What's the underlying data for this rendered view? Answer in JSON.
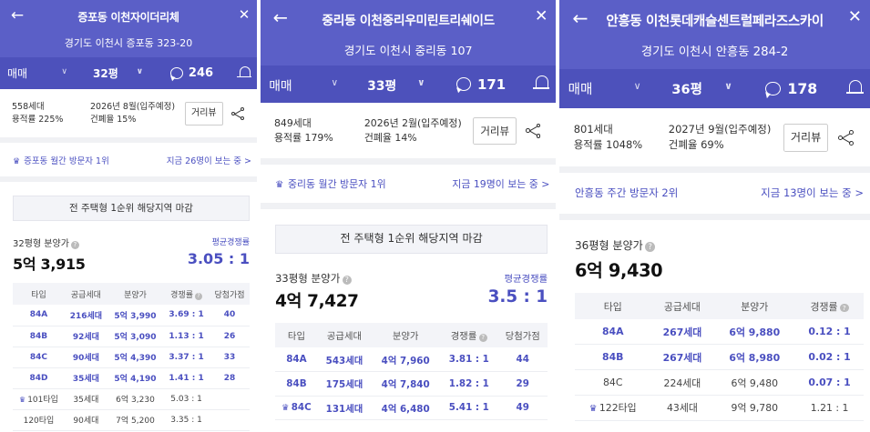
{
  "ui": {
    "back_icon": "←",
    "close_icon": "✕",
    "chevron_icon": "∨",
    "crown_icon": "♛",
    "help_icon": "?",
    "distance_button": "거리뷰",
    "notice": "전 주택형 1순위 해당지역 마감",
    "avg_competition_label": "평균경쟁률",
    "headers": {
      "type": "타입",
      "supply": "공급세대",
      "price": "분양가",
      "competition": "경쟁률",
      "score": "당첨가점"
    }
  },
  "panels": [
    {
      "title": "증포동 이천자이더리체",
      "address": "경기도 이천시 증포동 323-20",
      "trade_type": "매매",
      "size": "32평",
      "comments": "246",
      "households": "558세대",
      "floor_area_ratio": "용적률 225%",
      "move_in": "2026년 8월(입주예정)",
      "coverage_ratio": "건폐율 15%",
      "visitor_rank": "증포동 월간 방문자 1위",
      "viewing_now": "지금 26명이 보는 중 >",
      "price_label": "32평형 분양가",
      "price": "5억 3,915",
      "avg_competition": "3.05 : 1",
      "rows": [
        {
          "type": "84A",
          "supply": "216세대",
          "price": "5억 3,990",
          "comp": "3.69 : 1",
          "score": "40",
          "hl": true
        },
        {
          "type": "84B",
          "supply": "92세대",
          "price": "5억 3,090",
          "comp": "1.13 : 1",
          "score": "26",
          "hl": true
        },
        {
          "type": "84C",
          "supply": "90세대",
          "price": "5억 4,390",
          "comp": "3.37 : 1",
          "score": "33",
          "hl": true
        },
        {
          "type": "84D",
          "supply": "35세대",
          "price": "5억 4,190",
          "comp": "1.41 : 1",
          "score": "28",
          "hl": true
        },
        {
          "type": "101타입",
          "supply": "35세대",
          "price": "6억 3,230",
          "comp": "5.03 : 1",
          "score": "",
          "hl": false,
          "crown": true
        },
        {
          "type": "120타입",
          "supply": "90세대",
          "price": "7억 5,200",
          "comp": "3.35 : 1",
          "score": "",
          "hl": false
        }
      ]
    },
    {
      "title": "중리동 이천중리우미린트리쉐이드",
      "address": "경기도 이천시 중리동 107",
      "trade_type": "매매",
      "size": "33평",
      "comments": "171",
      "households": "849세대",
      "floor_area_ratio": "용적률 179%",
      "move_in": "2026년 2월(입주예정)",
      "coverage_ratio": "건폐율 14%",
      "visitor_rank": "중리동 월간 방문자 1위",
      "viewing_now": "지금 19명이 보는 중 >",
      "price_label": "33평형 분양가",
      "price": "4억 7,427",
      "avg_competition": "3.5 : 1",
      "rows": [
        {
          "type": "84A",
          "supply": "543세대",
          "price": "4억 7,960",
          "comp": "3.81 : 1",
          "score": "44",
          "hl": true
        },
        {
          "type": "84B",
          "supply": "175세대",
          "price": "4억 7,840",
          "comp": "1.82 : 1",
          "score": "29",
          "hl": true
        },
        {
          "type": "84C",
          "supply": "131세대",
          "price": "4억 6,480",
          "comp": "5.41 : 1",
          "score": "49",
          "hl": true,
          "crown": true
        }
      ]
    },
    {
      "title": "안흥동 이천롯데캐슬센트럴페라즈스카이",
      "address": "경기도 이천시 안흥동 284-2",
      "trade_type": "매매",
      "size": "36평",
      "comments": "178",
      "households": "801세대",
      "floor_area_ratio": "용적률 1048%",
      "move_in": "2027년 9월(입주예정)",
      "coverage_ratio": "건폐율 69%",
      "visitor_rank": "안흥동 주간 방문자 2위",
      "viewing_now": "지금 13명이 보는 중 >",
      "price_label": "36평형 분양가",
      "price": "6억 9,430",
      "rows": [
        {
          "type": "84A",
          "supply": "267세대",
          "price": "6억 9,880",
          "comp": "0.12 : 1",
          "hl": true
        },
        {
          "type": "84B",
          "supply": "267세대",
          "price": "6억 8,980",
          "comp": "0.02 : 1",
          "hl": true
        },
        {
          "type": "84C",
          "supply": "224세대",
          "price": "6억 9,480",
          "comp": "0.07 : 1",
          "hl": false
        },
        {
          "type": "122타입",
          "supply": "43세대",
          "price": "9억 9,780",
          "comp": "1.21 : 1",
          "hl": false,
          "crown": true
        }
      ]
    }
  ]
}
